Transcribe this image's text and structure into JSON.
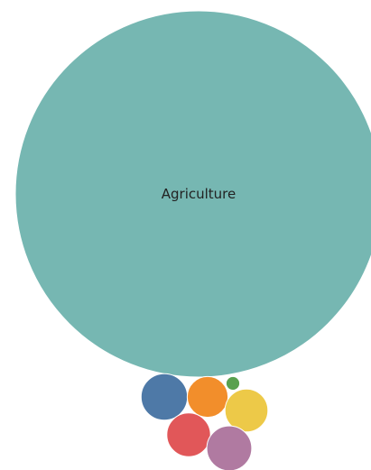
{
  "chart_data": {
    "type": "packed-bubble",
    "title": "",
    "bubbles": [
      {
        "label": "Agriculture",
        "value": 100,
        "color": "#76b7b2"
      },
      {
        "label": "",
        "value": 1.6,
        "color": "#4e79a7"
      },
      {
        "label": "",
        "value": 1.24,
        "color": "#f28e2b"
      },
      {
        "label": "",
        "value": 0.14,
        "color": "#59a14f"
      },
      {
        "label": "",
        "value": 1.38,
        "color": "#edc948"
      },
      {
        "label": "",
        "value": 1.42,
        "color": "#e15759"
      },
      {
        "label": "",
        "value": 1.51,
        "color": "#b07aa1"
      }
    ]
  }
}
